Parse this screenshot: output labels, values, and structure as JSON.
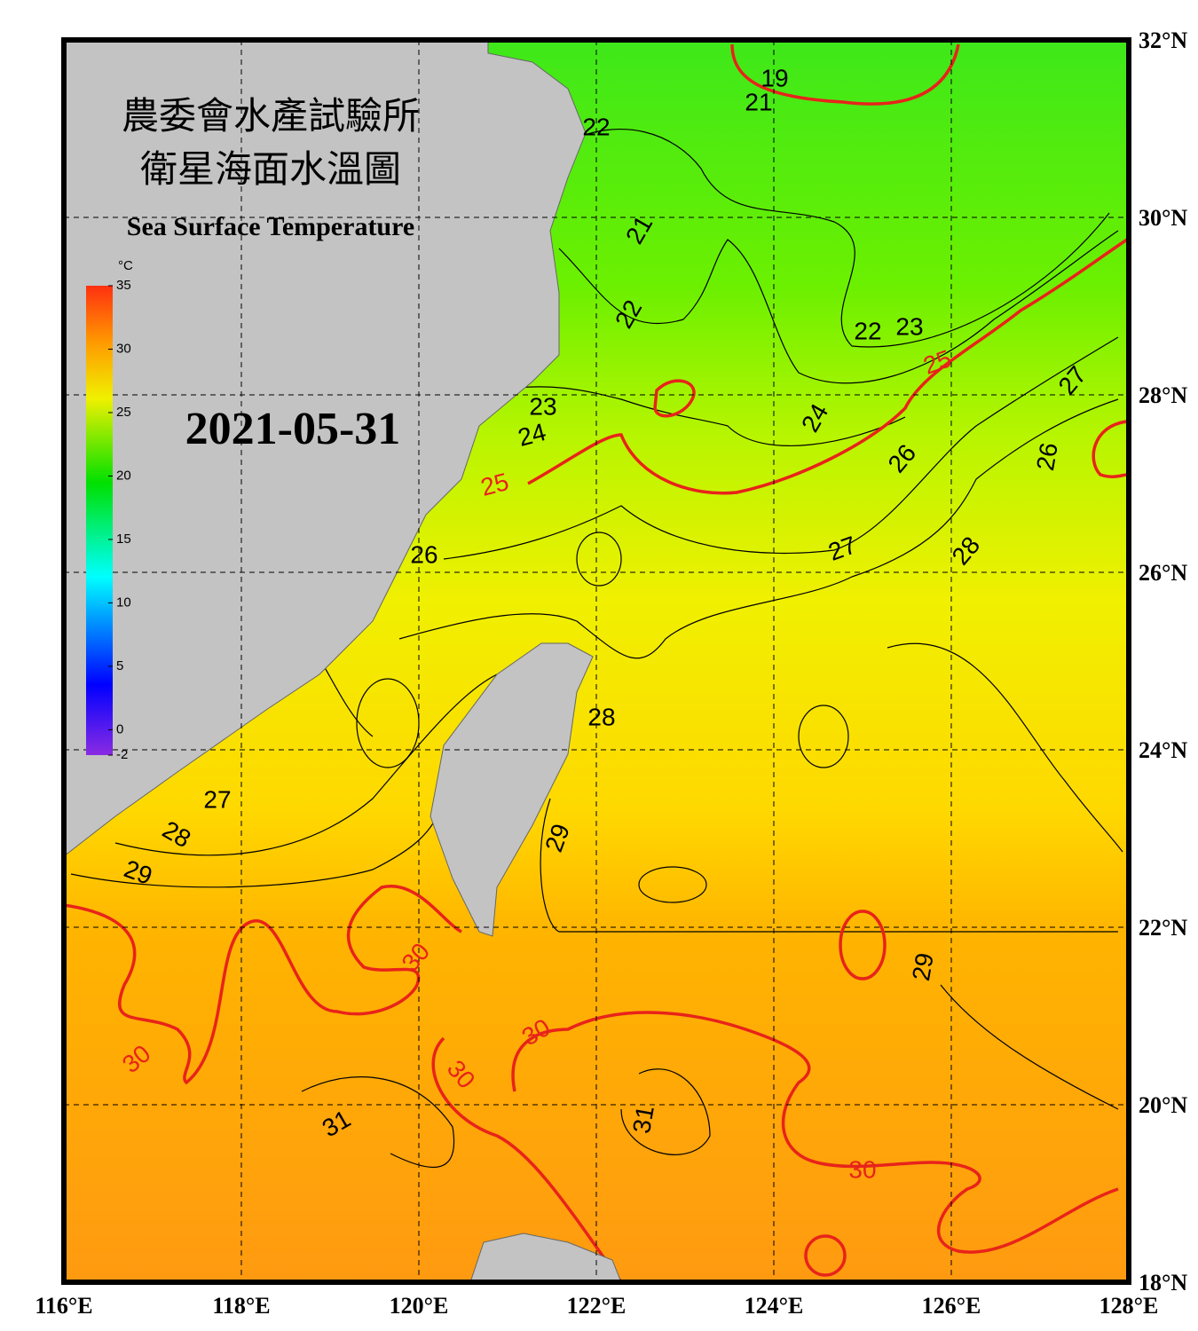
{
  "header": {
    "title_lines": [
      "農委會水產試驗所",
      "衛星海面水溫圖"
    ],
    "subtitle": "Sea Surface Temperature",
    "date": "2021-05-31"
  },
  "map": {
    "xlim": [
      116,
      128
    ],
    "ylim": [
      18,
      32
    ],
    "xticks": [
      {
        "value": 116,
        "label": "116°E"
      },
      {
        "value": 118,
        "label": "118°E"
      },
      {
        "value": 120,
        "label": "120°E"
      },
      {
        "value": 122,
        "label": "122°E"
      },
      {
        "value": 124,
        "label": "124°E"
      },
      {
        "value": 126,
        "label": "126°E"
      },
      {
        "value": 128,
        "label": "128°E"
      }
    ],
    "yticks": [
      {
        "value": 18,
        "label": "18°N"
      },
      {
        "value": 20,
        "label": "20°N"
      },
      {
        "value": 22,
        "label": "22°N"
      },
      {
        "value": 24,
        "label": "24°N"
      },
      {
        "value": 26,
        "label": "26°N"
      },
      {
        "value": 28,
        "label": "28°N"
      },
      {
        "value": 30,
        "label": "30°N"
      },
      {
        "value": 32,
        "label": "32°N"
      }
    ],
    "grid": true
  },
  "colorbar": {
    "unit": "°C",
    "range": [
      -2,
      35
    ],
    "ticks": [
      35,
      30,
      25,
      20,
      15,
      10,
      5,
      0,
      -2
    ]
  },
  "contour_labels": [
    {
      "value": 19,
      "color": "#000000"
    },
    {
      "value": 21,
      "color": "#000000"
    },
    {
      "value": 22,
      "color": "#000000"
    },
    {
      "value": 21,
      "color": "#000000"
    },
    {
      "value": 22,
      "color": "#000000"
    },
    {
      "value": 22,
      "color": "#000000"
    },
    {
      "value": 23,
      "color": "#000000"
    },
    {
      "value": 25,
      "color": "#e8231a"
    },
    {
      "value": 27,
      "color": "#000000"
    },
    {
      "value": 24,
      "color": "#000000"
    },
    {
      "value": 23,
      "color": "#000000"
    },
    {
      "value": 24,
      "color": "#000000"
    },
    {
      "value": 25,
      "color": "#e8231a"
    },
    {
      "value": 26,
      "color": "#000000"
    },
    {
      "value": 26,
      "color": "#000000"
    },
    {
      "value": 27,
      "color": "#000000"
    },
    {
      "value": 28,
      "color": "#000000"
    },
    {
      "value": 26,
      "color": "#000000"
    },
    {
      "value": 28,
      "color": "#000000"
    },
    {
      "value": 27,
      "color": "#000000"
    },
    {
      "value": 28,
      "color": "#000000"
    },
    {
      "value": 29,
      "color": "#000000"
    },
    {
      "value": 29,
      "color": "#000000"
    },
    {
      "value": 30,
      "color": "#e8231a"
    },
    {
      "value": 29,
      "color": "#000000"
    },
    {
      "value": 30,
      "color": "#e8231a"
    },
    {
      "value": 30,
      "color": "#e8231a"
    },
    {
      "value": 30,
      "color": "#e8231a"
    },
    {
      "value": 31,
      "color": "#000000"
    },
    {
      "value": 31,
      "color": "#000000"
    },
    {
      "value": 30,
      "color": "#e8231a"
    }
  ]
}
